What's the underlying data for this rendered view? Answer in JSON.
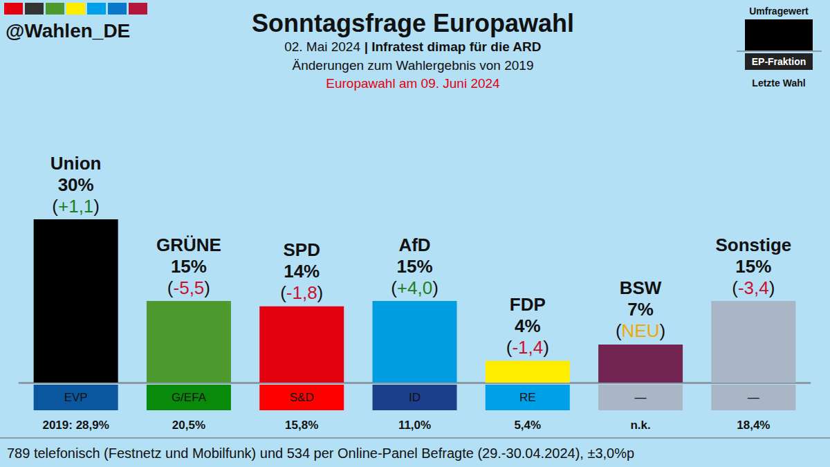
{
  "chart_data": {
    "type": "bar",
    "title": "Sonntagsfrage Europawahl",
    "subtitle": [
      "02. Mai 2024",
      "| Infratest dimap für die ARD"
    ],
    "caption": "Änderungen zum Wahlergebnis von 2019",
    "election": "Europawahl am 09. Juni 2024",
    "handle": "@Wahlen_DE",
    "footnote": "789 telefonisch (Festnetz und Mobilfunk) und 534 per Online-Panel Befragte (29.-30.04.2024), ±3,0%p",
    "key_box": {
      "value": "Umfragewert",
      "faction": "EP-Fraktion",
      "last": "Letzte Wahl"
    },
    "categories": [
      "Union",
      "GRÜNE",
      "SPD",
      "AfD",
      "FDP",
      "BSW",
      "Sonstige"
    ],
    "values": [
      30,
      15,
      14,
      15,
      4,
      7,
      15
    ],
    "value_labels": [
      "30%",
      "15%",
      "14%",
      "15%",
      "4%",
      "7%",
      "15%"
    ],
    "colors": [
      "#000000",
      "#4f9a2f",
      "#e3000f",
      "#009ee0",
      "#ffed00",
      "#722550",
      "#aab5c6"
    ],
    "changes": [
      1.1,
      -5.5,
      -1.8,
      4.0,
      -1.4,
      null,
      -3.4
    ],
    "change_labels": [
      "+1,1",
      "-5,5",
      "-1,8",
      "+4,0",
      "-1,4",
      "NEU",
      "-3,4"
    ],
    "factions": [
      "EVP",
      "G/EFA",
      "S&D",
      "ID",
      "RE",
      "—",
      "—"
    ],
    "faction_colors": [
      "#0a57a0",
      "#0a8a0a",
      "#ff0000",
      "#1b3f8a",
      "#00a0e8",
      "#aab5c6",
      "#aab5c6"
    ],
    "last_election": [
      28.9,
      20.5,
      15.8,
      11.0,
      5.4,
      null,
      18.4
    ],
    "last_election_labels": [
      "2019: 28,9%",
      "20,5%",
      "15,8%",
      "11,0%",
      "5,4%",
      "n.k.",
      "18,4%"
    ],
    "ylim": [
      0,
      30
    ],
    "yticks": [
      0,
      30
    ],
    "grid": false,
    "tick_labels": "x",
    "data_labels": true
  }
}
